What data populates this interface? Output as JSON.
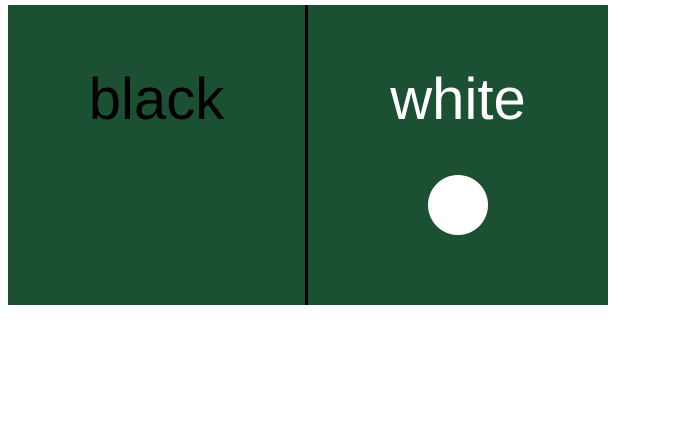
{
  "colors": {
    "board": "#1c5033",
    "black_text": "#000000",
    "white_text": "#ffffff",
    "piece": "#ffffff"
  },
  "panels": [
    {
      "label": "black",
      "has_piece": false
    },
    {
      "label": "white",
      "has_piece": true,
      "piece_color": "white"
    }
  ]
}
